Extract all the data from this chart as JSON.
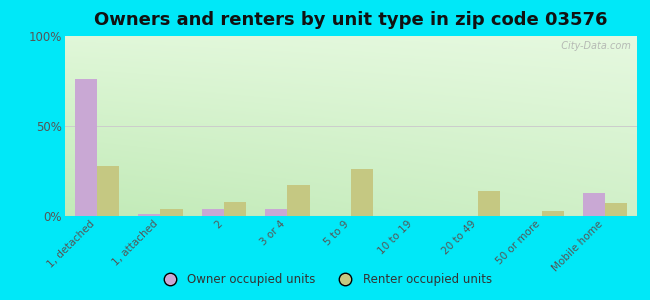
{
  "title": "Owners and renters by unit type in zip code 03576",
  "categories": [
    "1, detached",
    "1, attached",
    "2",
    "3 or 4",
    "5 to 9",
    "10 to 19",
    "20 to 49",
    "50 or more",
    "Mobile home"
  ],
  "owner_values": [
    76,
    1,
    4,
    4,
    0,
    0,
    0,
    0,
    13
  ],
  "renter_values": [
    28,
    4,
    8,
    17,
    26,
    0,
    14,
    3,
    7
  ],
  "owner_color": "#c9a8d4",
  "renter_color": "#c5c882",
  "background_outer": "#00e8f8",
  "title_fontsize": 13,
  "ylabel_ticks": [
    "0%",
    "50%",
    "100%"
  ],
  "ytick_values": [
    0,
    50,
    100
  ],
  "ylim": [
    0,
    100
  ],
  "watermark": "  City-Data.com",
  "legend_owner": "Owner occupied units",
  "legend_renter": "Renter occupied units"
}
